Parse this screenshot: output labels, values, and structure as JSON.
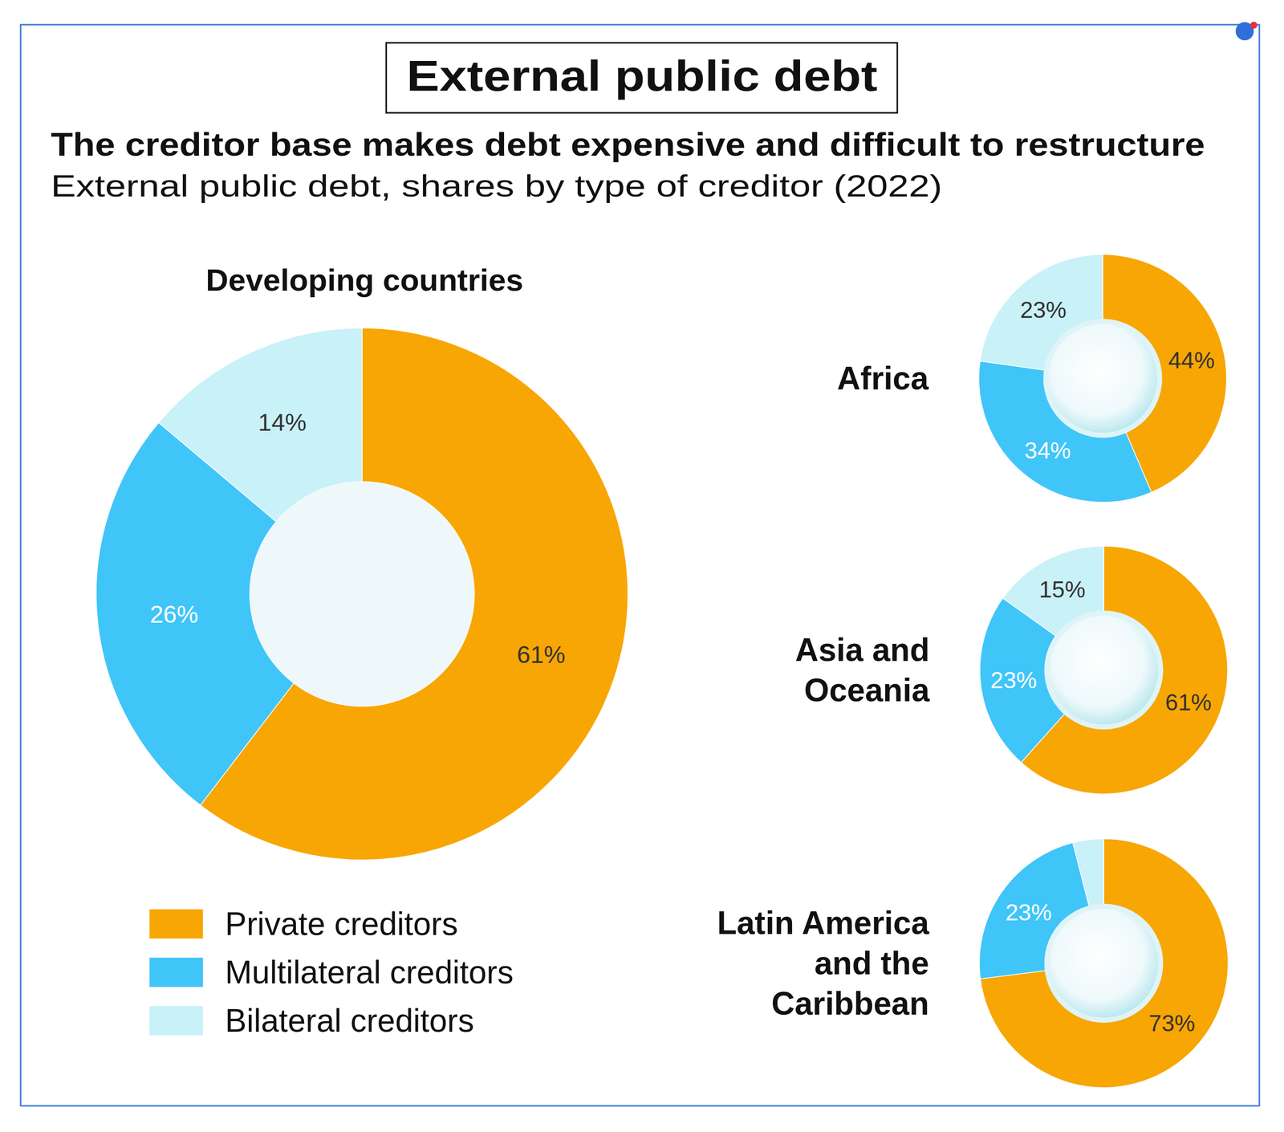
{
  "header": {
    "title": "External public debt",
    "headline": "The creditor base makes debt expensive and difficult to restructure",
    "subtitle": "External public debt, shares by type of creditor (2022)"
  },
  "chart_data": [
    {
      "type": "donut",
      "title": "Developing countries",
      "categories": [
        "Private creditors",
        "Multilateral creditors",
        "Bilateral creditors"
      ],
      "colors": [
        "#f8a604",
        "#40c5f9",
        "#c9f1f8"
      ],
      "values": [
        61,
        26,
        14
      ],
      "value_labels": [
        "61%",
        "26%",
        "14%"
      ],
      "data_labels": true,
      "legend": "bottom-left"
    },
    {
      "type": "donut",
      "title": "Africa",
      "categories": [
        "Private creditors",
        "Multilateral creditors",
        "Bilateral creditors"
      ],
      "colors": [
        "#f8a604",
        "#40c5f9",
        "#c9f1f8"
      ],
      "values": [
        44,
        34,
        23
      ],
      "value_labels": [
        "44%",
        "34%",
        "23%"
      ],
      "data_labels": true
    },
    {
      "type": "donut",
      "title": "Asia and Oceania",
      "categories": [
        "Private creditors",
        "Multilateral creditors",
        "Bilateral creditors"
      ],
      "colors": [
        "#f8a604",
        "#40c5f9",
        "#c9f1f8"
      ],
      "values": [
        61,
        23,
        15
      ],
      "value_labels": [
        "61%",
        "23%",
        "15%"
      ],
      "data_labels": true
    },
    {
      "type": "donut",
      "title": "Latin America and the Caribbean",
      "categories": [
        "Private creditors",
        "Multilateral creditors",
        "Bilateral creditors"
      ],
      "colors": [
        "#f8a604",
        "#40c5f9",
        "#c9f1f8"
      ],
      "values": [
        73,
        23,
        4
      ],
      "value_labels": [
        "73%",
        "23%",
        null
      ],
      "data_labels": true
    }
  ]
}
